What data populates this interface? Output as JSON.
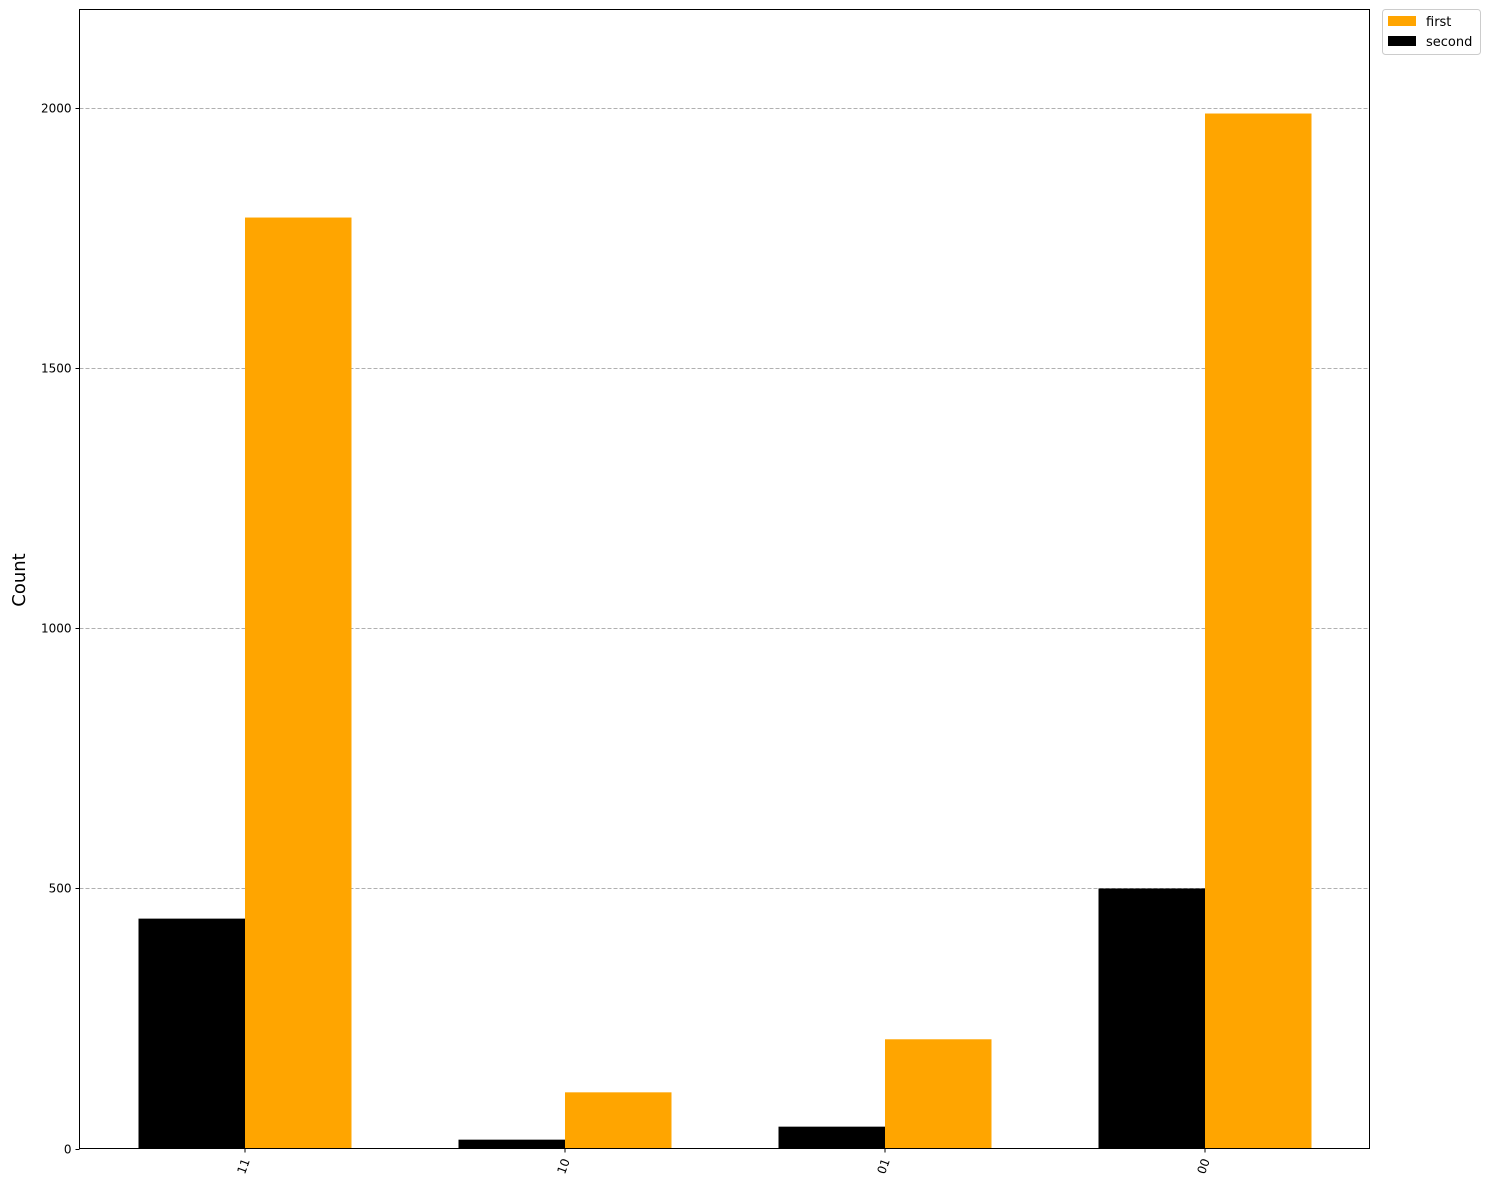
{
  "chart_data": {
    "type": "bar",
    "categories": [
      "11",
      "10",
      "01",
      "00"
    ],
    "series": [
      {
        "name": "second",
        "values": [
          442,
          17,
          42,
          500
        ],
        "color": "#000000"
      },
      {
        "name": "first",
        "values": [
          1790,
          108,
          210,
          1990
        ],
        "color": "#FFA500"
      }
    ],
    "legend_order": [
      "first",
      "second"
    ],
    "title": "",
    "xlabel": "",
    "ylabel": "Count",
    "ylim": [
      0,
      2190
    ],
    "yticks": [
      0,
      500,
      1000,
      1500,
      2000
    ],
    "grid": "y, dashed",
    "legend_placement": "outside top-right"
  }
}
